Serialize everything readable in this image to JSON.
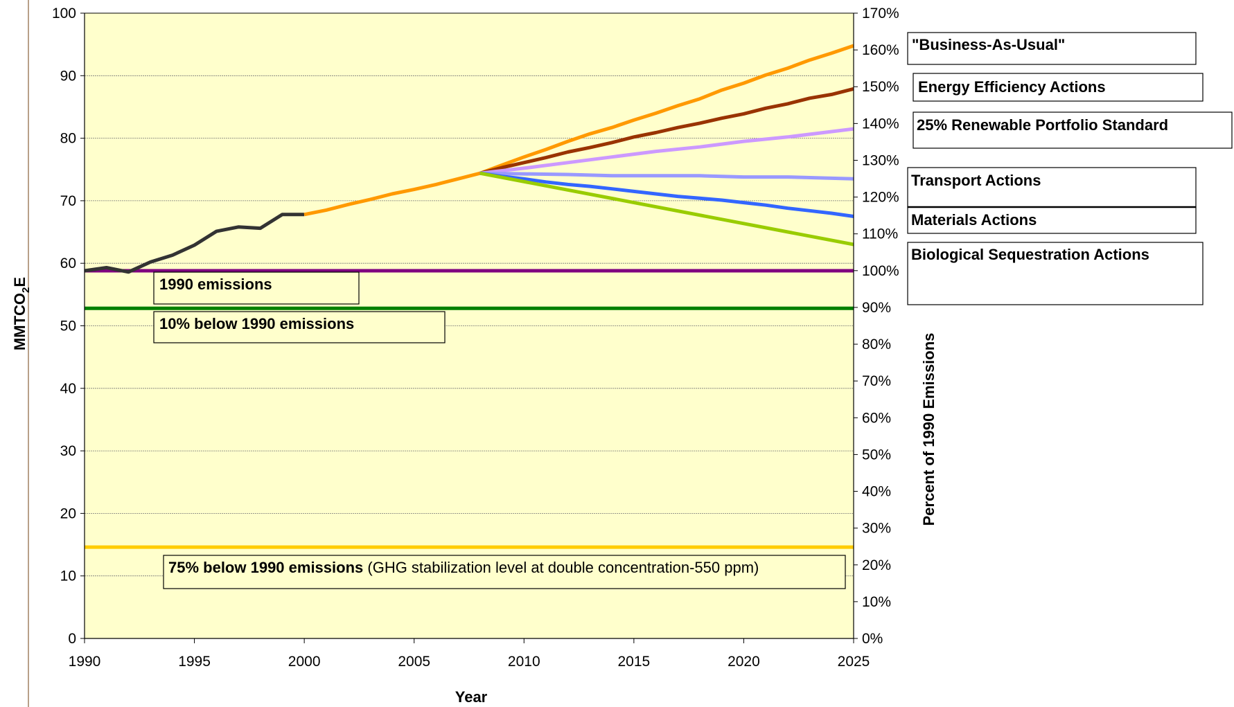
{
  "chart_data": {
    "type": "line",
    "xlabel": "Year",
    "ylabel": "MMTCO2E",
    "y2label": "Percent of 1990 Emissions",
    "xlim": [
      1990,
      2025
    ],
    "ylim": [
      0,
      100
    ],
    "y2lim": [
      0,
      170
    ],
    "x_ticks": [
      "1990",
      "1995",
      "2000",
      "2005",
      "2010",
      "2015",
      "2020",
      "2025"
    ],
    "y_ticks": [
      "0",
      "10",
      "20",
      "30",
      "40",
      "50",
      "60",
      "70",
      "80",
      "90",
      "100"
    ],
    "y2_ticks": [
      "0%",
      "10%",
      "20%",
      "30%",
      "40%",
      "50%",
      "60%",
      "70%",
      "80%",
      "90%",
      "100%",
      "110%",
      "120%",
      "130%",
      "140%",
      "150%",
      "160%",
      "170%"
    ],
    "grid": true,
    "plot_background": "#FFFFCC",
    "series": [
      {
        "key": "historical",
        "color": "#333333",
        "x": [
          1990,
          1991,
          1992,
          1993,
          1994,
          1995,
          1996,
          1997,
          1998,
          1999,
          2000
        ],
        "y": [
          58.8,
          59.3,
          58.6,
          60.2,
          61.3,
          62.9,
          65.1,
          65.8,
          65.6,
          67.8,
          67.8
        ]
      },
      {
        "key": "business_as_usual",
        "name": "\"Business-As-Usual\"",
        "color": "#FF9900",
        "x": [
          2000,
          2001,
          2002,
          2003,
          2004,
          2005,
          2006,
          2007,
          2008,
          2009,
          2010,
          2011,
          2012,
          2013,
          2014,
          2015,
          2016,
          2017,
          2018,
          2019,
          2020,
          2021,
          2022,
          2023,
          2024,
          2025
        ],
        "y": [
          67.8,
          68.5,
          69.4,
          70.2,
          71.1,
          71.8,
          72.6,
          73.5,
          74.4,
          75.7,
          77.0,
          78.2,
          79.5,
          80.7,
          81.7,
          82.9,
          84.0,
          85.2,
          86.3,
          87.7,
          88.8,
          90.1,
          91.2,
          92.5,
          93.6,
          94.8
        ]
      },
      {
        "key": "energy_efficiency",
        "name": "Energy Efficiency Actions",
        "color": "#993300",
        "x": [
          2008,
          2009,
          2010,
          2011,
          2012,
          2013,
          2014,
          2015,
          2016,
          2017,
          2018,
          2019,
          2020,
          2021,
          2022,
          2023,
          2024,
          2025
        ],
        "y": [
          74.4,
          75.3,
          76.1,
          76.9,
          77.8,
          78.5,
          79.3,
          80.2,
          80.9,
          81.7,
          82.4,
          83.2,
          83.9,
          84.8,
          85.5,
          86.4,
          87.0,
          87.9
        ]
      },
      {
        "key": "renewable_portfolio",
        "name": "25% Renewable Portfolio Standard",
        "color": "#CC99FF",
        "x": [
          2008,
          2010,
          2012,
          2014,
          2016,
          2018,
          2020,
          2022,
          2025
        ],
        "y": [
          74.4,
          75.2,
          76.1,
          77.0,
          77.9,
          78.6,
          79.5,
          80.2,
          81.5
        ]
      },
      {
        "key": "transport",
        "name": "Transport Actions",
        "color": "#9999FF",
        "x": [
          2008,
          2010,
          2012,
          2014,
          2016,
          2018,
          2020,
          2022,
          2025
        ],
        "y": [
          74.4,
          74.3,
          74.2,
          74.0,
          74.0,
          74.0,
          73.8,
          73.8,
          73.5
        ]
      },
      {
        "key": "materials",
        "name": "Materials Actions",
        "color": "#3366FF",
        "x": [
          2008,
          2009,
          2010,
          2011,
          2012,
          2013,
          2014,
          2015,
          2016,
          2017,
          2018,
          2019,
          2020,
          2021,
          2022,
          2023,
          2024,
          2025
        ],
        "y": [
          74.4,
          73.9,
          73.5,
          73.0,
          72.6,
          72.3,
          71.9,
          71.5,
          71.1,
          70.7,
          70.4,
          70.1,
          69.7,
          69.3,
          68.8,
          68.4,
          68.0,
          67.5
        ]
      },
      {
        "key": "biological_sequestration",
        "name": "Biological Sequestration Actions",
        "color": "#99CC00",
        "x": [
          2008,
          2025
        ],
        "y": [
          74.4,
          63.0
        ]
      }
    ],
    "reference_lines": [
      {
        "key": "emissions_1990",
        "y": 58.8,
        "color": "#800080",
        "label": "1990 emissions"
      },
      {
        "key": "below_10",
        "y": 52.8,
        "color": "#008000",
        "label": "10% below 1990 emissions"
      },
      {
        "key": "below_75",
        "y": 14.6,
        "color": "#FFCC00",
        "label_bold": "75% below 1990  emissions",
        "label_normal": " (GHG stabilization level at double concentration-550 ppm)"
      }
    ]
  }
}
